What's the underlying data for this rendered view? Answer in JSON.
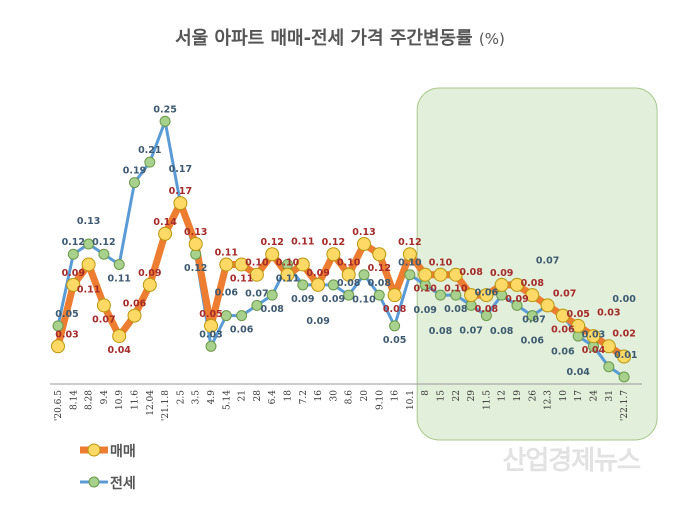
{
  "title": "서울 아파트 매매-전세 가격 주간변동률",
  "title_unit": "(%)",
  "watermark": "산업경제뉴스",
  "chart_data": {
    "type": "line",
    "title": "서울 아파트 매매-전세 가격 주간변동률 (%)",
    "categories": [
      "'20.6.5",
      "8.14",
      "8.28",
      "9.4",
      "10.9",
      "11.6",
      "12.04",
      "'21.1.8",
      "2.5",
      "3.5",
      "4.9",
      "5.14",
      "21",
      "28",
      "6.4",
      "18",
      "7.2",
      "16",
      "30",
      "8.6",
      "20",
      "9.10",
      "16",
      "10.1",
      "8",
      "15",
      "22",
      "29",
      "11.5",
      "12",
      "19",
      "26",
      "12.3",
      "10",
      "17",
      "24",
      "31",
      "'22.1.7"
    ],
    "series": [
      {
        "name": "매매",
        "color": "#ed7d31",
        "marker_color": "#ffd966",
        "values": [
          0.03,
          0.09,
          0.11,
          0.07,
          0.04,
          0.06,
          0.09,
          0.14,
          0.17,
          0.13,
          0.05,
          0.11,
          0.11,
          0.1,
          0.12,
          0.1,
          0.11,
          0.09,
          0.12,
          0.1,
          0.13,
          0.12,
          0.08,
          0.12,
          0.1,
          0.1,
          0.1,
          0.08,
          0.08,
          0.09,
          0.09,
          0.08,
          0.07,
          0.06,
          0.05,
          0.04,
          0.03,
          0.02
        ]
      },
      {
        "name": "전세",
        "color": "#5b9bd5",
        "marker_color": "#a9d18e",
        "values": [
          0.05,
          0.12,
          0.13,
          0.12,
          0.11,
          0.19,
          0.21,
          0.25,
          0.17,
          0.12,
          0.03,
          0.06,
          0.06,
          0.07,
          0.08,
          0.11,
          0.09,
          0.09,
          0.09,
          0.08,
          0.1,
          0.08,
          0.05,
          0.1,
          0.09,
          0.08,
          0.08,
          0.07,
          0.06,
          0.08,
          0.07,
          0.06,
          0.07,
          0.06,
          0.04,
          0.03,
          0.01,
          0.0
        ]
      }
    ],
    "highlight_range": [
      "8",
      "'22.1.7"
    ],
    "highlight_color": "#e2efda",
    "label_colors": {
      "매매": "#a52a2a",
      "전세": "#3e5a70"
    },
    "grid": false,
    "legend_position": "bottom-left"
  }
}
